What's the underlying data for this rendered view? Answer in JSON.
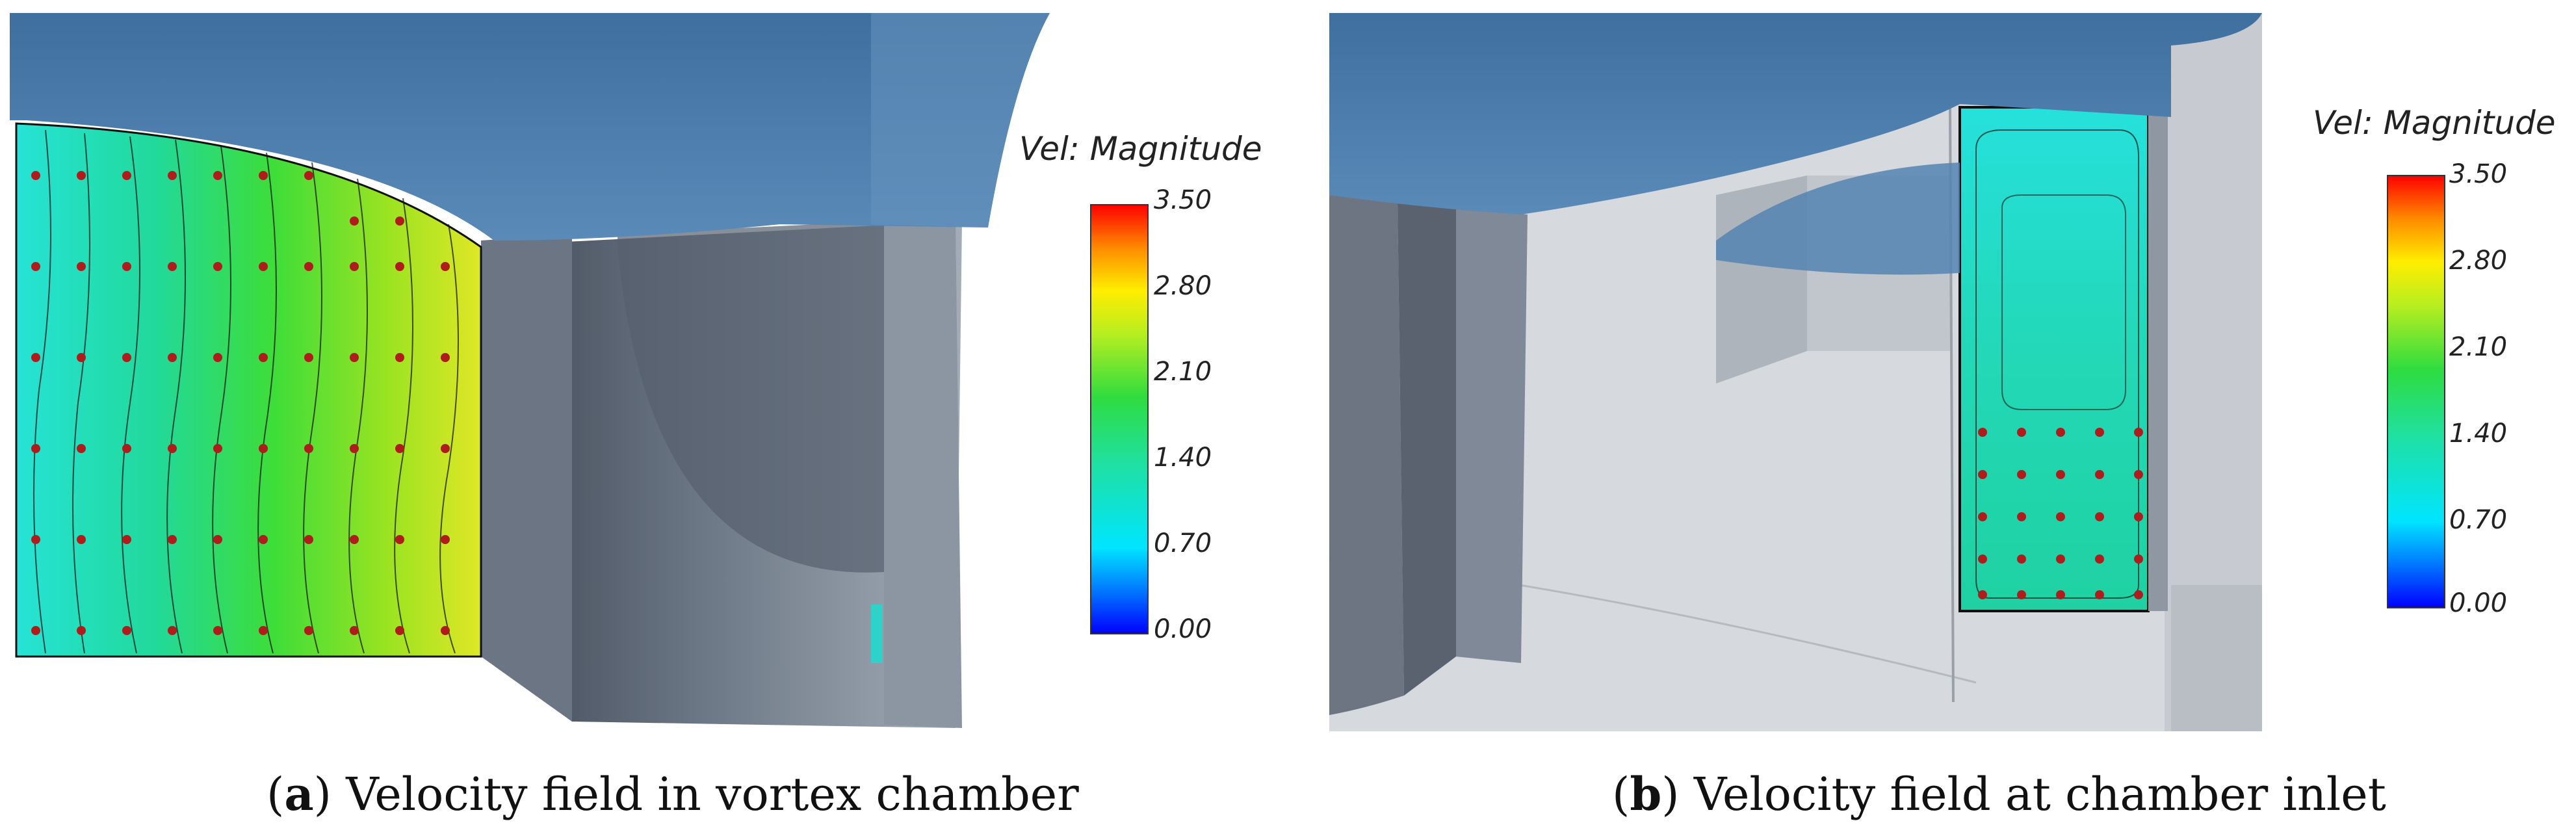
{
  "panels": [
    {
      "id": "a",
      "caption_letter": "a",
      "caption_text": "Velocity field in vortex chamber",
      "legend_title": "Vel: Magnitude",
      "legend_ticks": [
        "3.50",
        "2.80",
        "2.10",
        "1.40",
        "0.70",
        "0.00"
      ]
    },
    {
      "id": "b",
      "caption_letter": "b",
      "caption_text": "Velocity field at chamber inlet",
      "legend_title": "Vel: Magnitude",
      "legend_ticks": [
        "3.50",
        "2.80",
        "2.10",
        "1.40",
        "0.70",
        "0.00"
      ]
    }
  ],
  "colors": {
    "water_surface": "#4f7fae",
    "structure": "#7f8a98",
    "background_walls": "#cfd3d8",
    "probe_points": "#b01c1c"
  }
}
